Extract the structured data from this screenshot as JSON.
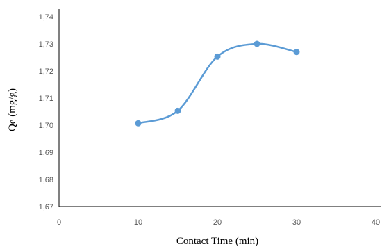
{
  "chart_data": {
    "type": "line",
    "title": "",
    "xlabel": "Contact Time (min)",
    "ylabel": "Qe (mg/g)",
    "xlim": [
      0,
      40
    ],
    "ylim": [
      1.67,
      1.74
    ],
    "x_ticks": [
      0,
      10,
      20,
      30,
      40
    ],
    "y_ticks": [
      1.67,
      1.68,
      1.69,
      1.7,
      1.71,
      1.72,
      1.73,
      1.74
    ],
    "x_tick_labels": [
      "0",
      "10",
      "20",
      "30",
      "40"
    ],
    "y_tick_labels": [
      "1,67",
      "1,68",
      "1,69",
      "1,70",
      "1,71",
      "1,72",
      "1,73",
      "1,74"
    ],
    "grid": false,
    "smooth": true,
    "series": [
      {
        "color": "#5b9bd5",
        "x": [
          10,
          15,
          20,
          25,
          30
        ],
        "y": [
          1.7007,
          1.7053,
          1.7253,
          1.73,
          1.727
        ]
      }
    ]
  }
}
